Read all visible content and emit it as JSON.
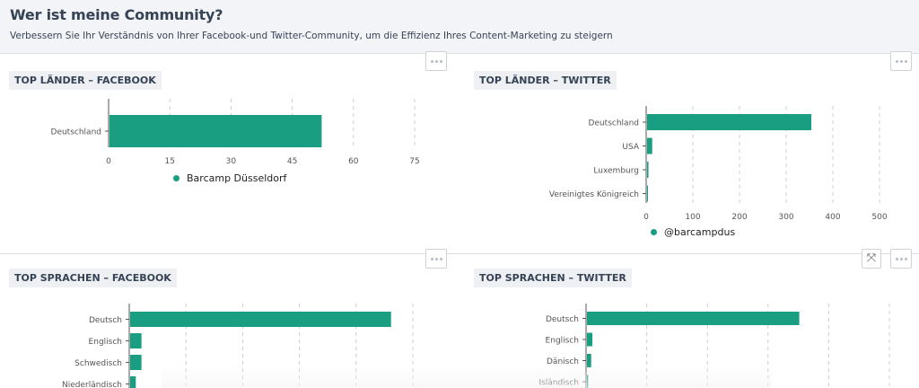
{
  "header": {
    "title": "Wer ist meine Community?",
    "subtitle": "Verbessern Sie Ihr Verständnis von Ihrer Facebook-und Twitter-Community, um die Effizienz Ihres Content-Marketing zu steigern"
  },
  "colors": {
    "bar": "#1a9e82",
    "grid": "#cccccc",
    "axis": "#555555"
  },
  "panels": {
    "fb_countries": {
      "title": "TOP LÄNDER – FACEBOOK",
      "legend": "Barcamp Düsseldorf"
    },
    "tw_countries": {
      "title": "TOP LÄNDER – TWITTER",
      "legend": "@barcampdus"
    },
    "fb_languages": {
      "title": "TOP SPRACHEN – FACEBOOK"
    },
    "tw_languages": {
      "title": "TOP SPRACHEN – TWITTER"
    }
  },
  "chart_data": [
    {
      "id": "fb_countries",
      "type": "bar",
      "orientation": "horizontal",
      "categories": [
        "Deutschland"
      ],
      "series": [
        {
          "name": "Barcamp Düsseldorf",
          "values": [
            52
          ]
        }
      ],
      "ticks": [
        0,
        15,
        30,
        45,
        60,
        75
      ],
      "xlim": [
        0,
        75
      ],
      "grid": true
    },
    {
      "id": "tw_countries",
      "type": "bar",
      "orientation": "horizontal",
      "categories": [
        "Deutschland",
        "USA",
        "Luxemburg",
        "Vereinigtes Königreich"
      ],
      "series": [
        {
          "name": "@barcampdus",
          "values": [
            352,
            11,
            3,
            2
          ]
        }
      ],
      "ticks": [
        0,
        100,
        200,
        300,
        400,
        500
      ],
      "xlim": [
        0,
        500
      ],
      "grid": true
    },
    {
      "id": "fb_languages",
      "type": "bar",
      "orientation": "horizontal",
      "categories": [
        "Deutsch",
        "Englisch",
        "Schwedisch",
        "Niederländisch"
      ],
      "series": [
        {
          "values": [
            46,
            2,
            2,
            1
          ]
        }
      ],
      "xlim": [
        0,
        50
      ],
      "grid": true
    },
    {
      "id": "tw_languages",
      "type": "bar",
      "orientation": "horizontal",
      "categories": [
        "Deutsch",
        "Englisch",
        "Dänisch",
        "Isländisch"
      ],
      "series": [
        {
          "values": [
            350,
            9,
            7,
            2
          ]
        }
      ],
      "xlim": [
        0,
        500
      ],
      "grid": true
    }
  ]
}
